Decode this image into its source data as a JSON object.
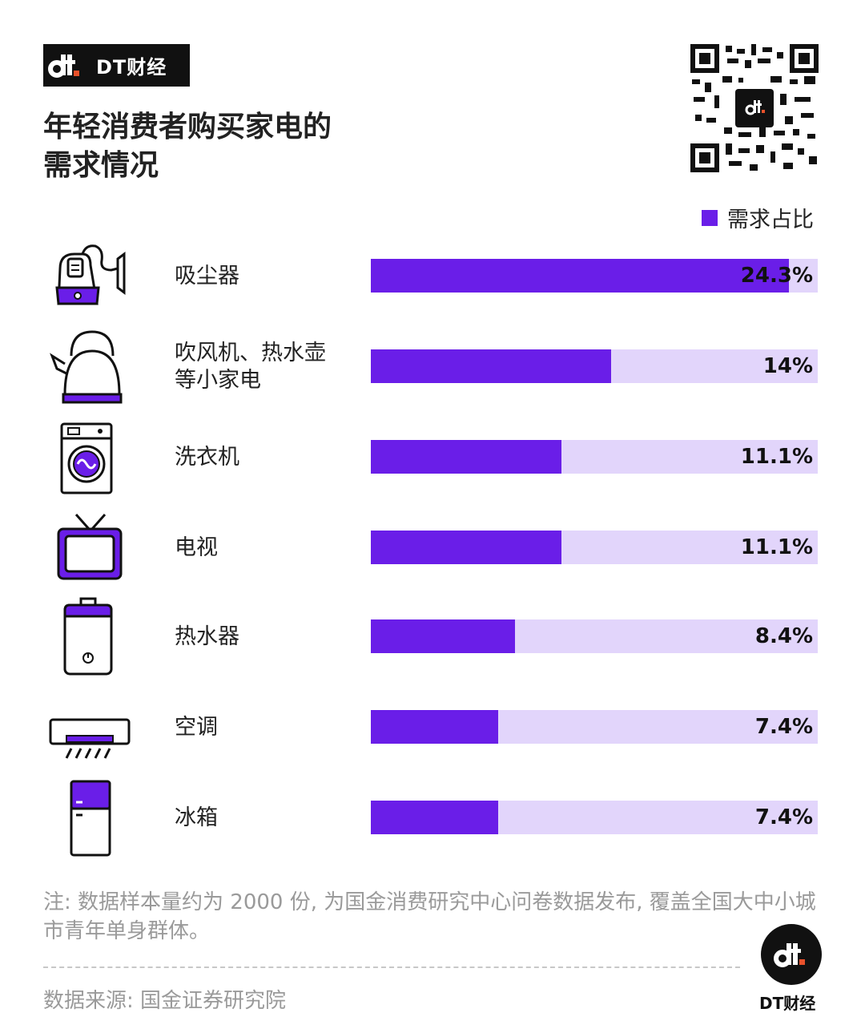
{
  "brand": {
    "logo_text": "DT财经",
    "footer_text": "DT财经"
  },
  "title": "年轻消费者购买家电的\n需求情况",
  "legend": {
    "label": "需求占比",
    "color": "#6a1ee8"
  },
  "colors": {
    "bar_fill": "#6a1ee8",
    "bar_track": "#e2d5fb"
  },
  "chart_data": {
    "type": "bar",
    "orientation": "horizontal",
    "categories": [
      "吸尘器",
      "吹风机、热水壶\n等小家电",
      "洗衣机",
      "电视",
      "热水器",
      "空调",
      "冰箱"
    ],
    "series": [
      {
        "name": "需求占比",
        "values": [
          24.3,
          14,
          11.1,
          11.1,
          8.4,
          7.4,
          7.4
        ]
      }
    ],
    "value_labels": [
      "24.3%",
      "14%",
      "11.1%",
      "11.1%",
      "8.4%",
      "7.4%",
      "7.4%"
    ],
    "xlim": [
      0,
      26
    ],
    "legend_position": "top-right",
    "icons": [
      "vacuum-cleaner-icon",
      "kettle-icon",
      "washing-machine-icon",
      "tv-icon",
      "water-heater-icon",
      "air-conditioner-icon",
      "fridge-icon"
    ]
  },
  "note": "注: 数据样本量约为 2000 份, 为国金消费研究中心问卷数据发布, 覆盖全国大中小城市青年单身群体。",
  "source": "数据来源: 国金证券研究院"
}
